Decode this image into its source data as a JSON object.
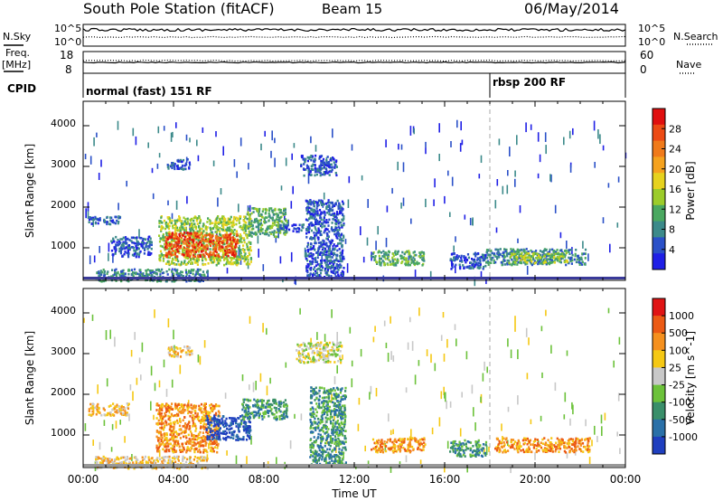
{
  "header": {
    "station": "South Pole Station (fitACF)",
    "beam": "Beam 15",
    "date": "06/May/2014"
  },
  "top_panels": {
    "nsky_label": "N.Sky",
    "nsearch_label": "N.Search",
    "nsky_ticks": [
      "10^5",
      "10^0"
    ],
    "nsearch_ticks": [
      "10^5",
      "10^0"
    ],
    "freq_label_1": "Freq.",
    "freq_label_2": "[MHz]",
    "freq_ticks": [
      "18",
      "8"
    ],
    "nave_label": "Nave",
    "nave_ticks": [
      "60",
      "0"
    ],
    "cpid_label": "CPID",
    "cpid_modes": [
      {
        "label": "normal (fast) 151 RF",
        "start_hour": 0
      },
      {
        "label": "rbsp 200 RF",
        "start_hour": 18
      }
    ]
  },
  "chart_data": [
    {
      "type": "heatmap",
      "name": "power-panel",
      "xlabel": "Time UT",
      "ylabel": "Slant Range [km]",
      "xlim": [
        0,
        24
      ],
      "ylim": [
        200,
        4600
      ],
      "xticks": [
        "00:00",
        "04:00",
        "08:00",
        "12:00",
        "16:00",
        "20:00",
        "00:00"
      ],
      "yticks": [
        "1000",
        "2000",
        "3000",
        "4000"
      ],
      "colorbar_label": "Power [dB]",
      "colorbar_ticks": [
        "28",
        "24",
        "20",
        "16",
        "12",
        "8",
        "4"
      ],
      "colors": [
        "#1f1fe6",
        "#2a50c8",
        "#3c8a8a",
        "#4aa860",
        "#9ccc2a",
        "#e6d21e",
        "#f5a21e",
        "#f07a1a",
        "#ec4a14",
        "#e00f0f"
      ],
      "regions": [
        {
          "t": [
            3.7,
            4.7
          ],
          "r": [
            2950,
            3200
          ],
          "level": 1
        },
        {
          "t": [
            9.6,
            11.2
          ],
          "r": [
            2800,
            3300
          ],
          "level": 1
        },
        {
          "t": [
            0.2,
            1.6
          ],
          "r": [
            1600,
            1800
          ],
          "level": 1
        },
        {
          "t": [
            1.2,
            3.0
          ],
          "r": [
            800,
            1300
          ],
          "level": 1
        },
        {
          "t": [
            3.3,
            7.4
          ],
          "r": [
            600,
            1800
          ],
          "level": 4
        },
        {
          "t": [
            3.6,
            6.8
          ],
          "r": [
            800,
            1400
          ],
          "level": 8
        },
        {
          "t": [
            7.2,
            9.0
          ],
          "r": [
            1300,
            2000
          ],
          "level": 3
        },
        {
          "t": [
            8.6,
            10.0
          ],
          "r": [
            1400,
            1600
          ],
          "level": 1
        },
        {
          "t": [
            9.8,
            11.5
          ],
          "r": [
            300,
            2200
          ],
          "level": 1
        },
        {
          "t": [
            12.7,
            15.1
          ],
          "r": [
            600,
            950
          ],
          "level": 3
        },
        {
          "t": [
            16.2,
            17.8
          ],
          "r": [
            500,
            900
          ],
          "level": 1
        },
        {
          "t": [
            17.8,
            22.2
          ],
          "r": [
            600,
            1000
          ],
          "level": 2
        },
        {
          "t": [
            18.8,
            21.4
          ],
          "r": [
            650,
            900
          ],
          "level": 4
        },
        {
          "t": [
            0.5,
            5.5
          ],
          "r": [
            200,
            500
          ],
          "level": 2
        }
      ]
    },
    {
      "type": "heatmap",
      "name": "velocity-panel",
      "xlabel": "Time UT",
      "ylabel": "Slant Range [km]",
      "xlim": [
        0,
        24
      ],
      "ylim": [
        200,
        4600
      ],
      "xticks": [
        "00:00",
        "04:00",
        "08:00",
        "12:00",
        "16:00",
        "20:00",
        "00:00"
      ],
      "yticks": [
        "1000",
        "2000",
        "3000",
        "4000"
      ],
      "colorbar_label": "Velocity [m s^-1]",
      "colorbar_ticks": [
        "1000",
        "500",
        "100",
        "25",
        "-25",
        "-100",
        "-500",
        "-1000"
      ],
      "colors": [
        "#1f3fbf",
        "#2a70a8",
        "#3a8f6a",
        "#6cc23a",
        "#c8c8c8",
        "#f5c814",
        "#f5901e",
        "#ec5a14",
        "#e01414"
      ],
      "regions": [
        {
          "t": [
            3.7,
            4.8
          ],
          "r": [
            2950,
            3200
          ],
          "level": 5
        },
        {
          "t": [
            9.4,
            11.4
          ],
          "r": [
            2800,
            3300
          ],
          "level": 4
        },
        {
          "t": [
            0.2,
            2.0
          ],
          "r": [
            1500,
            1800
          ],
          "level": 5
        },
        {
          "t": [
            3.2,
            6.0
          ],
          "r": [
            600,
            1800
          ],
          "level": 6
        },
        {
          "t": [
            5.4,
            7.4
          ],
          "r": [
            900,
            1500
          ],
          "level": 0
        },
        {
          "t": [
            7.0,
            9.0
          ],
          "r": [
            1400,
            1900
          ],
          "level": 2
        },
        {
          "t": [
            10.0,
            11.6
          ],
          "r": [
            300,
            2200
          ],
          "level": 2
        },
        {
          "t": [
            12.7,
            15.1
          ],
          "r": [
            600,
            950
          ],
          "level": 6
        },
        {
          "t": [
            16.2,
            17.8
          ],
          "r": [
            500,
            900
          ],
          "level": 2
        },
        {
          "t": [
            18.2,
            22.4
          ],
          "r": [
            600,
            950
          ],
          "level": 6
        },
        {
          "t": [
            0.5,
            5.5
          ],
          "r": [
            200,
            500
          ],
          "level": 5
        }
      ]
    }
  ]
}
